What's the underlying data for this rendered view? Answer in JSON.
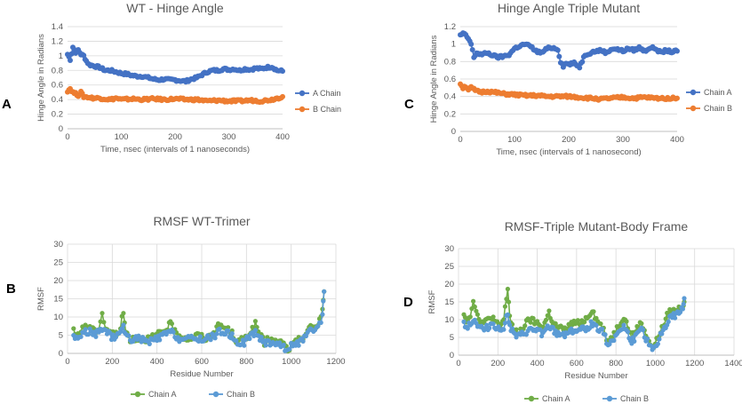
{
  "panels": [
    {
      "letter": "A"
    },
    {
      "letter": "C"
    },
    {
      "letter": "B"
    },
    {
      "letter": "D"
    }
  ],
  "chart_data": [
    {
      "type": "scatter",
      "title": "WT - Hinge Angle",
      "xlabel": "Time, nsec (intervals of 1 nanoseconds)",
      "ylabel": "Hinge Angle in Radians",
      "xlim": [
        0,
        400
      ],
      "ylim": [
        0,
        1.4
      ],
      "xticks": [
        0,
        100,
        200,
        300,
        400
      ],
      "yticks": [
        0,
        0.2,
        0.4,
        0.6,
        0.8,
        1,
        1.2,
        1.4
      ],
      "grid": "horizontal",
      "legend": "right",
      "series": [
        {
          "name": "A Chain",
          "color": "#4472C4",
          "x": [
            0,
            5,
            10,
            15,
            20,
            25,
            30,
            35,
            40,
            50,
            60,
            70,
            80,
            90,
            100,
            110,
            120,
            130,
            140,
            150,
            160,
            170,
            180,
            190,
            200,
            210,
            220,
            230,
            240,
            250,
            260,
            270,
            280,
            290,
            300,
            310,
            320,
            330,
            340,
            350,
            360,
            370,
            380,
            390,
            400
          ],
          "y": [
            1.02,
            0.95,
            1.12,
            1.05,
            1.08,
            1.02,
            1.0,
            0.93,
            0.88,
            0.86,
            0.84,
            0.8,
            0.8,
            0.78,
            0.76,
            0.75,
            0.73,
            0.72,
            0.72,
            0.7,
            0.68,
            0.67,
            0.68,
            0.67,
            0.67,
            0.66,
            0.65,
            0.68,
            0.7,
            0.74,
            0.78,
            0.8,
            0.8,
            0.82,
            0.81,
            0.82,
            0.8,
            0.82,
            0.81,
            0.83,
            0.82,
            0.84,
            0.85,
            0.8,
            0.79
          ]
        },
        {
          "name": "B Chain",
          "color": "#ED7D31",
          "x": [
            0,
            5,
            10,
            15,
            20,
            25,
            30,
            40,
            50,
            60,
            70,
            80,
            90,
            100,
            120,
            140,
            160,
            180,
            200,
            220,
            240,
            260,
            280,
            300,
            320,
            340,
            360,
            380,
            390,
            400
          ],
          "y": [
            0.52,
            0.55,
            0.5,
            0.48,
            0.46,
            0.5,
            0.44,
            0.43,
            0.42,
            0.42,
            0.41,
            0.4,
            0.42,
            0.4,
            0.41,
            0.4,
            0.41,
            0.4,
            0.41,
            0.4,
            0.4,
            0.38,
            0.39,
            0.38,
            0.38,
            0.39,
            0.38,
            0.4,
            0.42,
            0.44
          ]
        }
      ]
    },
    {
      "type": "scatter",
      "title": "Hinge Angle Triple Mutant",
      "xlabel": "Time, nsec (intervals of 1 nanosecond)",
      "ylabel": "Hinge Angle in Radians",
      "xlim": [
        0,
        400
      ],
      "ylim": [
        0,
        1.2
      ],
      "xticks": [
        0,
        100,
        200,
        300,
        400
      ],
      "yticks": [
        0,
        0.2,
        0.4,
        0.6,
        0.8,
        1,
        1.2
      ],
      "grid": "horizontal",
      "legend": "right",
      "series": [
        {
          "name": "Chain A",
          "color": "#4472C4",
          "x": [
            0,
            5,
            10,
            15,
            20,
            25,
            30,
            40,
            50,
            60,
            70,
            80,
            90,
            100,
            110,
            120,
            130,
            140,
            150,
            160,
            170,
            180,
            185,
            190,
            195,
            200,
            210,
            220,
            230,
            240,
            250,
            260,
            270,
            280,
            290,
            300,
            310,
            320,
            330,
            340,
            350,
            360,
            370,
            380,
            390,
            400
          ],
          "y": [
            1.1,
            1.12,
            1.1,
            1.06,
            1.0,
            0.85,
            0.9,
            0.88,
            0.9,
            0.87,
            0.85,
            0.86,
            0.88,
            0.95,
            0.98,
            1.0,
            0.97,
            0.92,
            0.9,
            0.95,
            0.96,
            0.94,
            0.8,
            0.75,
            0.78,
            0.77,
            0.78,
            0.74,
            0.88,
            0.9,
            0.92,
            0.93,
            0.9,
            0.95,
            0.94,
            0.92,
            0.95,
            0.93,
            0.96,
            0.92,
            0.96,
            0.95,
            0.9,
            0.93,
            0.91,
            0.92
          ]
        },
        {
          "name": "Chain B",
          "color": "#ED7D31",
          "x": [
            0,
            5,
            10,
            15,
            20,
            30,
            40,
            50,
            60,
            70,
            80,
            100,
            120,
            140,
            160,
            180,
            200,
            220,
            240,
            260,
            280,
            300,
            320,
            340,
            360,
            380,
            400
          ],
          "y": [
            0.55,
            0.5,
            0.52,
            0.48,
            0.5,
            0.46,
            0.45,
            0.46,
            0.45,
            0.44,
            0.43,
            0.42,
            0.41,
            0.41,
            0.4,
            0.4,
            0.4,
            0.39,
            0.38,
            0.37,
            0.38,
            0.39,
            0.38,
            0.39,
            0.38,
            0.38,
            0.38
          ]
        }
      ]
    },
    {
      "type": "scatter",
      "title": "RMSF WT-Trimer",
      "xlabel": "Residue Number",
      "ylabel": "RMSF",
      "xlim": [
        0,
        1200
      ],
      "ylim": [
        0,
        30
      ],
      "xticks": [
        0,
        200,
        400,
        600,
        800,
        1000,
        1200
      ],
      "yticks": [
        0,
        5,
        10,
        15,
        20,
        25,
        30
      ],
      "grid": "both",
      "legend": "bottom",
      "series": [
        {
          "name": "Chain A",
          "color": "#70AD47",
          "x": [
            27,
            40,
            60,
            80,
            100,
            120,
            140,
            155,
            170,
            190,
            210,
            230,
            250,
            260,
            280,
            300,
            330,
            360,
            400,
            430,
            460,
            480,
            500,
            540,
            580,
            620,
            660,
            680,
            700,
            730,
            760,
            790,
            820,
            840,
            860,
            880,
            900,
            930,
            960,
            985,
            1000,
            1020,
            1040,
            1060,
            1080,
            1100,
            1120,
            1140,
            1147
          ],
          "y": [
            6,
            5,
            6,
            8,
            7,
            6,
            7,
            11,
            7,
            6,
            5,
            6,
            11,
            6,
            4,
            4,
            4,
            4,
            5,
            6,
            8,
            6,
            5,
            4,
            5,
            4,
            6,
            8,
            7,
            6,
            3,
            4,
            6,
            8,
            5,
            3,
            4,
            3,
            3,
            1,
            2,
            3,
            4,
            5,
            7,
            7,
            8,
            12,
            17
          ]
        },
        {
          "name": "Chain B",
          "color": "#5B9BD5",
          "x": [
            27,
            40,
            60,
            80,
            100,
            120,
            140,
            155,
            170,
            190,
            210,
            230,
            250,
            260,
            280,
            300,
            330,
            360,
            400,
            430,
            460,
            480,
            500,
            540,
            580,
            620,
            660,
            680,
            700,
            730,
            760,
            790,
            820,
            840,
            860,
            880,
            900,
            930,
            960,
            985,
            1000,
            1020,
            1040,
            1060,
            1080,
            1100,
            1120,
            1140,
            1147
          ],
          "y": [
            5,
            4,
            5,
            6,
            6,
            5,
            6,
            7,
            6,
            5,
            4,
            5,
            8,
            5,
            4,
            4,
            4,
            3,
            4,
            5,
            6,
            5,
            4,
            4,
            4,
            4,
            5,
            6,
            6,
            5,
            3,
            3,
            5,
            6,
            4,
            3,
            3,
            3,
            2,
            1,
            2,
            3,
            3,
            4,
            6,
            6,
            7,
            10,
            17
          ]
        }
      ]
    },
    {
      "type": "scatter",
      "title": "RMSF-Triple Mutant-Body Frame",
      "xlabel": "Residue Number",
      "ylabel": "RMSF",
      "xlim": [
        0,
        1400
      ],
      "ylim": [
        0,
        30
      ],
      "xticks": [
        0,
        200,
        400,
        600,
        800,
        1000,
        1200,
        1400
      ],
      "yticks": [
        0,
        5,
        10,
        15,
        20,
        25,
        30
      ],
      "grid": "both",
      "legend": "bottom",
      "series": [
        {
          "name": "Chain A",
          "color": "#70AD47",
          "x": [
            27,
            40,
            60,
            75,
            90,
            110,
            130,
            150,
            170,
            190,
            210,
            230,
            250,
            260,
            280,
            300,
            330,
            360,
            400,
            430,
            460,
            480,
            500,
            540,
            580,
            620,
            660,
            680,
            700,
            730,
            760,
            790,
            820,
            840,
            860,
            880,
            900,
            930,
            960,
            985,
            1000,
            1020,
            1040,
            1060,
            1080,
            1100,
            1120,
            1140,
            1147
          ],
          "y": [
            12,
            10,
            11,
            16,
            12,
            10,
            9,
            10,
            11,
            9,
            8,
            10,
            19,
            11,
            7,
            6,
            8,
            10,
            9,
            8,
            12,
            9,
            8,
            7,
            9,
            9,
            11,
            13,
            10,
            8,
            4,
            6,
            9,
            11,
            8,
            5,
            7,
            9,
            5,
            2,
            3,
            6,
            8,
            11,
            13,
            12,
            13,
            14,
            15
          ]
        },
        {
          "name": "Chain B",
          "color": "#5B9BD5",
          "x": [
            27,
            40,
            60,
            75,
            90,
            110,
            130,
            150,
            170,
            190,
            210,
            230,
            250,
            260,
            280,
            300,
            330,
            360,
            400,
            430,
            460,
            480,
            500,
            540,
            580,
            620,
            660,
            680,
            700,
            730,
            760,
            790,
            820,
            840,
            860,
            880,
            900,
            930,
            960,
            985,
            1000,
            1020,
            1040,
            1060,
            1080,
            1100,
            1120,
            1140,
            1147
          ],
          "y": [
            9,
            8,
            9,
            10,
            9,
            8,
            7,
            8,
            9,
            8,
            7,
            8,
            12,
            8,
            6,
            5,
            6,
            7,
            7,
            6,
            8,
            7,
            6,
            6,
            7,
            7,
            8,
            9,
            8,
            7,
            3,
            5,
            7,
            8,
            6,
            4,
            5,
            7,
            4,
            1,
            2,
            5,
            7,
            9,
            11,
            11,
            12,
            13,
            16
          ]
        }
      ]
    }
  ]
}
